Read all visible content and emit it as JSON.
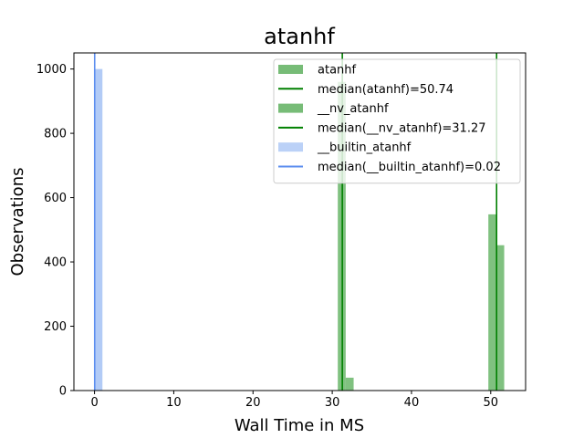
{
  "chart_data": {
    "type": "bar",
    "title": "atanhf",
    "xlabel": "Wall Time in MS",
    "ylabel": "Observations",
    "xlim": [
      -2.6,
      54.4
    ],
    "ylim": [
      0,
      1050
    ],
    "xticks": [
      0,
      10,
      20,
      30,
      40,
      50
    ],
    "yticks": [
      0,
      200,
      400,
      600,
      800,
      1000
    ],
    "grid": false,
    "legend_position": "top-right",
    "series": [
      {
        "name": "atanhf",
        "kind": "histogram",
        "color": "#4aa64a",
        "opacity": 0.7,
        "bins": [
          {
            "x0": 49.7,
            "x1": 50.7,
            "count": 548
          },
          {
            "x0": 50.7,
            "x1": 51.7,
            "count": 452
          }
        ]
      },
      {
        "name": "__nv_atanhf",
        "kind": "histogram",
        "color": "#4aa64a",
        "opacity": 0.7,
        "bins": [
          {
            "x0": 30.7,
            "x1": 31.7,
            "count": 960
          },
          {
            "x0": 31.7,
            "x1": 32.7,
            "count": 40
          }
        ]
      },
      {
        "name": "__builtin_atanhf",
        "kind": "histogram",
        "color": "#a4c2f4",
        "opacity": 0.85,
        "bins": [
          {
            "x0": 0.0,
            "x1": 1.0,
            "count": 1000
          }
        ]
      }
    ],
    "medians": [
      {
        "name": "median(atanhf)=50.74",
        "value": 50.74,
        "color": "#008000"
      },
      {
        "name": "median(__nv_atanhf)=31.27",
        "value": 31.27,
        "color": "#008000"
      },
      {
        "name": "median(__builtin_atanhf)=0.02",
        "value": 0.02,
        "color": "#5b8def"
      }
    ],
    "legend": [
      {
        "label": "atanhf",
        "kind": "patch",
        "color": "#4aa64a"
      },
      {
        "label": "median(atanhf)=50.74",
        "kind": "line",
        "color": "#008000"
      },
      {
        "label": "__nv_atanhf",
        "kind": "patch",
        "color": "#4aa64a"
      },
      {
        "label": "median(__nv_atanhf)=31.27",
        "kind": "line",
        "color": "#008000"
      },
      {
        "label": "__builtin_atanhf",
        "kind": "patch",
        "color": "#a4c2f4"
      },
      {
        "label": "median(__builtin_atanhf)=0.02",
        "kind": "line",
        "color": "#5b8def"
      }
    ]
  }
}
